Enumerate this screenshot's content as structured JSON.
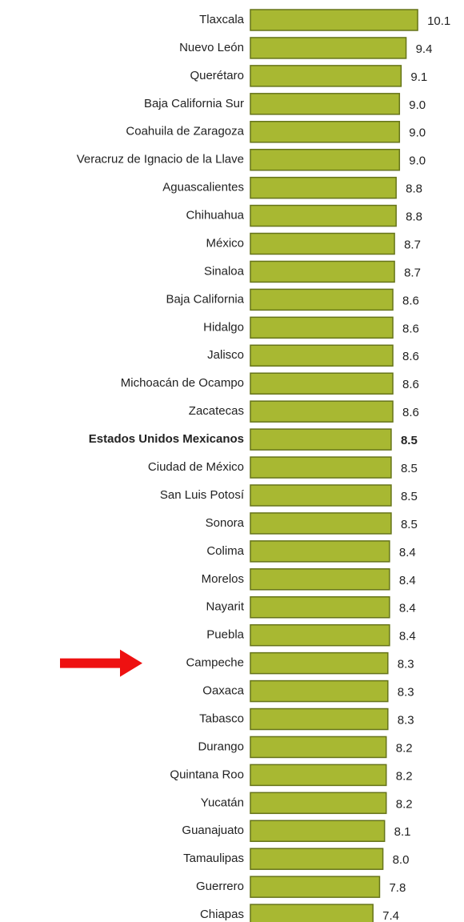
{
  "chart_data": {
    "type": "barh",
    "categories": [
      "Tlaxcala",
      "Nuevo León",
      "Querétaro",
      "Baja California Sur",
      "Coahuila de Zaragoza",
      "Veracruz de Ignacio de la Llave",
      "Aguascalientes",
      "Chihuahua",
      "México",
      "Sinaloa",
      "Baja California",
      "Hidalgo",
      "Jalisco",
      "Michoacán de Ocampo",
      "Zacatecas",
      "Estados Unidos Mexicanos",
      "Ciudad de México",
      "San Luis Potosí",
      "Sonora",
      "Colima",
      "Morelos",
      "Nayarit",
      "Puebla",
      "Campeche",
      "Oaxaca",
      "Tabasco",
      "Durango",
      "Quintana Roo",
      "Yucatán",
      "Guanajuato",
      "Tamaulipas",
      "Guerrero",
      "Chiapas"
    ],
    "values": [
      10.1,
      9.4,
      9.1,
      9.0,
      9.0,
      9.0,
      8.8,
      8.8,
      8.7,
      8.7,
      8.6,
      8.6,
      8.6,
      8.6,
      8.6,
      8.5,
      8.5,
      8.5,
      8.5,
      8.4,
      8.4,
      8.4,
      8.4,
      8.3,
      8.3,
      8.3,
      8.2,
      8.2,
      8.2,
      8.1,
      8.0,
      7.8,
      7.4
    ],
    "value_labels": [
      "10.1",
      "9.4",
      "9.1",
      "9.0",
      "9.0",
      "9.0",
      "8.8",
      "8.8",
      "8.7",
      "8.7",
      "8.6",
      "8.6",
      "8.6",
      "8.6",
      "8.6",
      "8.5",
      "8.5",
      "8.5",
      "8.5",
      "8.4",
      "8.4",
      "8.4",
      "8.4",
      "8.3",
      "8.3",
      "8.3",
      "8.2",
      "8.2",
      "8.2",
      "8.1",
      "8.0",
      "7.8",
      "7.4"
    ],
    "color": "#a8b832",
    "emphasis": "Estados Unidos Mexicanos",
    "arrow_category": "Campeche",
    "arrow_color": "#ee1111"
  }
}
